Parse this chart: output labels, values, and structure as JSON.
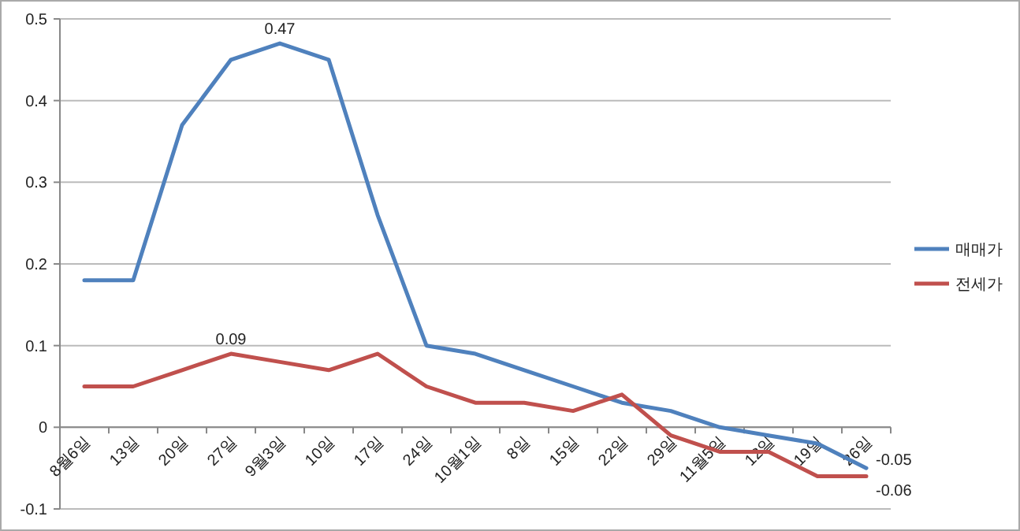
{
  "chart_data": {
    "type": "line",
    "categories": [
      "8월6일",
      "13일",
      "20일",
      "27일",
      "9월3일",
      "10일",
      "17일",
      "24일",
      "10월1일",
      "8일",
      "15일",
      "22일",
      "29일",
      "11월5일",
      "12일",
      "19일",
      "26일"
    ],
    "series": [
      {
        "name": "매매가",
        "color": "#4f81bd",
        "values": [
          0.18,
          0.18,
          0.37,
          0.45,
          0.47,
          0.45,
          0.26,
          0.1,
          0.09,
          0.07,
          0.05,
          0.03,
          0.02,
          0.0,
          -0.01,
          -0.02,
          -0.05
        ],
        "value_labels": [
          null,
          null,
          null,
          null,
          "0.47",
          null,
          null,
          null,
          null,
          null,
          null,
          null,
          null,
          null,
          null,
          null,
          "-0.05"
        ]
      },
      {
        "name": "전세가",
        "color": "#c0504d",
        "values": [
          0.05,
          0.05,
          0.07,
          0.09,
          0.08,
          0.07,
          0.09,
          0.05,
          0.03,
          0.03,
          0.02,
          0.04,
          -0.01,
          -0.03,
          -0.03,
          -0.06,
          -0.06
        ],
        "value_labels": [
          null,
          null,
          null,
          "0.09",
          null,
          null,
          null,
          null,
          null,
          null,
          null,
          null,
          null,
          null,
          null,
          null,
          "-0.06"
        ]
      }
    ],
    "ylim": [
      -0.1,
      0.5
    ],
    "yticks": [
      -0.1,
      0,
      0.1,
      0.2,
      0.3,
      0.4,
      0.5
    ],
    "grid": "y",
    "legend": "right",
    "marker": "none",
    "line_style": "solid"
  }
}
